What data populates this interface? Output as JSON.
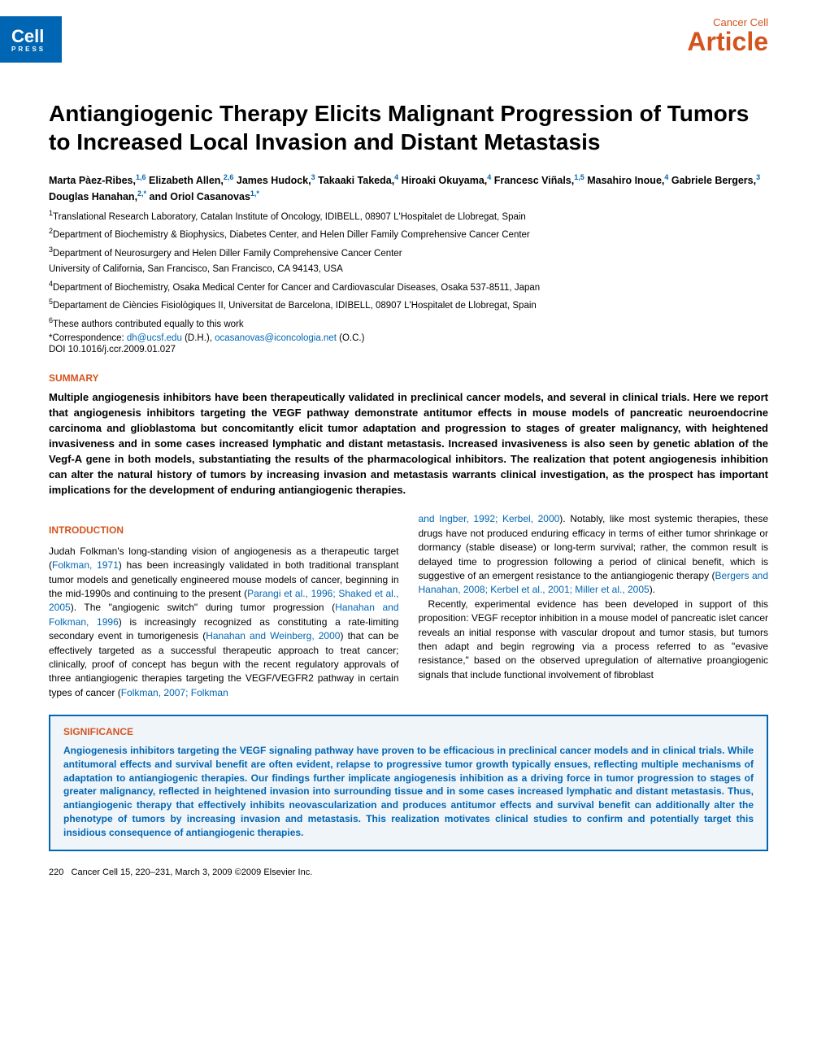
{
  "header": {
    "logo_main": "Cell",
    "logo_sub": "PRESS",
    "journal": "Cancer Cell",
    "article_type": "Article"
  },
  "title": "Antiangiogenic Therapy Elicits Malignant Progression of Tumors to Increased Local Invasion and Distant Metastasis",
  "authors": [
    {
      "name": "Marta Pàez-Ribes,",
      "sup": "1,6"
    },
    {
      "name": "Elizabeth Allen,",
      "sup": "2,6"
    },
    {
      "name": "James Hudock,",
      "sup": "3"
    },
    {
      "name": "Takaaki Takeda,",
      "sup": "4"
    },
    {
      "name": "Hiroaki Okuyama,",
      "sup": "4"
    },
    {
      "name": "Francesc Viñals,",
      "sup": "1,5"
    },
    {
      "name": "Masahiro Inoue,",
      "sup": "4"
    },
    {
      "name": "Gabriele Bergers,",
      "sup": "3"
    },
    {
      "name": "Douglas Hanahan,",
      "sup": "2,*"
    },
    {
      "name": "and Oriol Casanovas",
      "sup": "1,*"
    }
  ],
  "affiliations": [
    {
      "sup": "1",
      "text": "Translational Research Laboratory, Catalan Institute of Oncology, IDIBELL, 08907 L'Hospitalet de Llobregat, Spain"
    },
    {
      "sup": "2",
      "text": "Department of Biochemistry & Biophysics, Diabetes Center, and Helen Diller Family Comprehensive Cancer Center"
    },
    {
      "sup": "3",
      "text": "Department of Neurosurgery and Helen Diller Family Comprehensive Cancer Center"
    },
    {
      "sup": "",
      "text": "University of California, San Francisco, San Francisco, CA 94143, USA"
    },
    {
      "sup": "4",
      "text": "Department of Biochemistry, Osaka Medical Center for Cancer and Cardiovascular Diseases, Osaka 537-8511, Japan"
    },
    {
      "sup": "5",
      "text": "Departament de Ciències Fisiològiques II, Universitat de Barcelona, IDIBELL, 08907 L'Hospitalet de Llobregat, Spain"
    },
    {
      "sup": "6",
      "text": "These authors contributed equally to this work"
    }
  ],
  "correspondence": {
    "label": "*Correspondence:",
    "email1": "dh@ucsf.edu",
    "initials1": "(D.H.),",
    "email2": "ocasanovas@iconcologia.net",
    "initials2": "(O.C.)"
  },
  "doi": "DOI 10.1016/j.ccr.2009.01.027",
  "sections": {
    "summary_heading": "SUMMARY",
    "summary_text": "Multiple angiogenesis inhibitors have been therapeutically validated in preclinical cancer models, and several in clinical trials. Here we report that angiogenesis inhibitors targeting the VEGF pathway demonstrate antitumor effects in mouse models of pancreatic neuroendocrine carcinoma and glioblastoma but concomitantly elicit tumor adaptation and progression to stages of greater malignancy, with heightened invasiveness and in some cases increased lymphatic and distant metastasis. Increased invasiveness is also seen by genetic ablation of the Vegf-A gene in both models, substantiating the results of the pharmacological inhibitors. The realization that potent angiogenesis inhibition can alter the natural history of tumors by increasing invasion and metastasis warrants clinical investigation, as the prospect has important implications for the development of enduring antiangiogenic therapies.",
    "intro_heading": "INTRODUCTION",
    "intro_col1_p1_a": "Judah Folkman's long-standing vision of angiogenesis as a therapeutic target (",
    "intro_col1_ref1": "Folkman, 1971",
    "intro_col1_p1_b": ") has been increasingly validated in both traditional transplant tumor models and genetically engineered mouse models of cancer, beginning in the mid-1990s and continuing to the present (",
    "intro_col1_ref2": "Parangi et al., 1996; Shaked et al., 2005",
    "intro_col1_p1_c": "). The \"angiogenic switch\" during tumor progression (",
    "intro_col1_ref3": "Hanahan and Folkman, 1996",
    "intro_col1_p1_d": ") is increasingly recognized as constituting a rate-limiting secondary event in tumorigenesis (",
    "intro_col1_ref4": "Hanahan and Weinberg, 2000",
    "intro_col1_p1_e": ") that can be effectively targeted as a successful therapeutic approach to treat cancer; clinically, proof of concept has begun with the recent regulatory approvals of three antiangiogenic therapies targeting the VEGF/VEGFR2 pathway in certain types of cancer (",
    "intro_col1_ref5": "Folkman, 2007; Folkman",
    "intro_col2_ref1": "and Ingber, 1992; Kerbel, 2000",
    "intro_col2_p1_a": "). Notably, like most systemic therapies, these drugs have not produced enduring efficacy in terms of either tumor shrinkage or dormancy (stable disease) or long-term survival; rather, the common result is delayed time to progression following a period of clinical benefit, which is suggestive of an emergent resistance to the antiangiogenic therapy (",
    "intro_col2_ref2": "Bergers and Hanahan, 2008; Kerbel et al., 2001; Miller et al., 2005",
    "intro_col2_p1_b": ").",
    "intro_col2_p2": "Recently, experimental evidence has been developed in support of this proposition: VEGF receptor inhibition in a mouse model of pancreatic islet cancer reveals an initial response with vascular dropout and tumor stasis, but tumors then adapt and begin regrowing via a process referred to as \"evasive resistance,\" based on the observed upregulation of alternative proangiogenic signals that include functional involvement of fibroblast",
    "significance_heading": "SIGNIFICANCE",
    "significance_text": "Angiogenesis inhibitors targeting the VEGF signaling pathway have proven to be efficacious in preclinical cancer models and in clinical trials. While antitumoral effects and survival benefit are often evident, relapse to progressive tumor growth typically ensues, reflecting multiple mechanisms of adaptation to antiangiogenic therapies. Our findings further implicate angiogenesis inhibition as a driving force in tumor progression to stages of greater malignancy, reflected in heightened invasion into surrounding tissue and in some cases increased lymphatic and distant metastasis. Thus, antiangiogenic therapy that effectively inhibits neovascularization and produces antitumor effects and survival benefit can additionally alter the phenotype of tumors by increasing invasion and metastasis. This realization motivates clinical studies to confirm and potentially target this insidious consequence of antiangiogenic therapies."
  },
  "footer": {
    "page": "220",
    "citation": "Cancer Cell 15, 220–231, March 3, 2009 ©2009 Elsevier Inc."
  },
  "colors": {
    "brand_orange": "#d4541e",
    "brand_blue": "#0066b3",
    "box_bg": "#f0f5fa"
  }
}
